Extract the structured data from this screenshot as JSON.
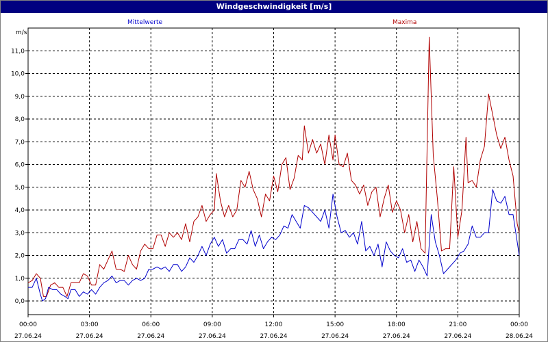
{
  "window": {
    "title": "Windgeschwindigkeit [m/s]"
  },
  "chart_data": {
    "type": "line",
    "title": "Windgeschwindigkeit [m/s]",
    "ylabel": "m/s",
    "ylim": [
      -0.6,
      12.0
    ],
    "xlim": [
      0,
      24
    ],
    "grid": true,
    "y_ticks": [
      "0,0",
      "1,0",
      "2,0",
      "3,0",
      "4,0",
      "5,0",
      "6,0",
      "7,0",
      "8,0",
      "9,0",
      "10,0",
      "11,0"
    ],
    "x_ticks": [
      {
        "time": "00:00",
        "date": "27.06.24"
      },
      {
        "time": "03:00",
        "date": "27.06.24"
      },
      {
        "time": "06:00",
        "date": "27.06.24"
      },
      {
        "time": "09:00",
        "date": "27.06.24"
      },
      {
        "time": "12:00",
        "date": "27.06.24"
      },
      {
        "time": "15:00",
        "date": "27.06.24"
      },
      {
        "time": "18:00",
        "date": "27.06.24"
      },
      {
        "time": "21:00",
        "date": "27.06.24"
      },
      {
        "time": "00:00",
        "date": "28.06.24"
      }
    ],
    "series": [
      {
        "name": "Mittelwerte",
        "color": "#0000cc",
        "points": [
          [
            0.0,
            0.6
          ],
          [
            0.2,
            0.6
          ],
          [
            0.4,
            1.0
          ],
          [
            0.6,
            0.3
          ],
          [
            0.7,
            0.0
          ],
          [
            0.85,
            0.1
          ],
          [
            1.0,
            0.6
          ],
          [
            1.2,
            0.5
          ],
          [
            1.4,
            0.5
          ],
          [
            1.6,
            0.3
          ],
          [
            1.8,
            0.2
          ],
          [
            1.95,
            0.1
          ],
          [
            2.1,
            0.5
          ],
          [
            2.3,
            0.5
          ],
          [
            2.5,
            0.2
          ],
          [
            2.7,
            0.4
          ],
          [
            2.9,
            0.3
          ],
          [
            3.1,
            0.5
          ],
          [
            3.3,
            0.3
          ],
          [
            3.5,
            0.6
          ],
          [
            3.7,
            0.8
          ],
          [
            3.9,
            0.9
          ],
          [
            4.1,
            1.1
          ],
          [
            4.3,
            0.8
          ],
          [
            4.5,
            0.9
          ],
          [
            4.7,
            0.9
          ],
          [
            4.9,
            0.7
          ],
          [
            5.1,
            0.9
          ],
          [
            5.3,
            1.0
          ],
          [
            5.5,
            0.9
          ],
          [
            5.7,
            1.0
          ],
          [
            5.9,
            1.4
          ],
          [
            6.1,
            1.4
          ],
          [
            6.3,
            1.5
          ],
          [
            6.5,
            1.4
          ],
          [
            6.7,
            1.5
          ],
          [
            6.9,
            1.3
          ],
          [
            7.1,
            1.6
          ],
          [
            7.3,
            1.6
          ],
          [
            7.5,
            1.3
          ],
          [
            7.7,
            1.5
          ],
          [
            7.9,
            1.9
          ],
          [
            8.1,
            1.7
          ],
          [
            8.3,
            2.0
          ],
          [
            8.5,
            2.4
          ],
          [
            8.7,
            2.0
          ],
          [
            8.9,
            2.5
          ],
          [
            9.1,
            2.8
          ],
          [
            9.3,
            2.4
          ],
          [
            9.5,
            2.7
          ],
          [
            9.7,
            2.1
          ],
          [
            9.9,
            2.3
          ],
          [
            10.1,
            2.3
          ],
          [
            10.3,
            2.7
          ],
          [
            10.5,
            2.7
          ],
          [
            10.7,
            2.5
          ],
          [
            10.9,
            3.1
          ],
          [
            11.1,
            2.4
          ],
          [
            11.3,
            2.9
          ],
          [
            11.5,
            2.3
          ],
          [
            11.7,
            2.6
          ],
          [
            11.9,
            2.8
          ],
          [
            12.1,
            2.7
          ],
          [
            12.3,
            2.9
          ],
          [
            12.5,
            3.3
          ],
          [
            12.7,
            3.2
          ],
          [
            12.9,
            3.8
          ],
          [
            13.1,
            3.5
          ],
          [
            13.3,
            3.2
          ],
          [
            13.5,
            4.2
          ],
          [
            13.7,
            4.1
          ],
          [
            13.9,
            3.9
          ],
          [
            14.1,
            3.7
          ],
          [
            14.3,
            3.5
          ],
          [
            14.5,
            4.0
          ],
          [
            14.7,
            3.2
          ],
          [
            14.9,
            4.7
          ],
          [
            15.1,
            3.7
          ],
          [
            15.3,
            3.0
          ],
          [
            15.5,
            3.1
          ],
          [
            15.7,
            2.8
          ],
          [
            15.9,
            3.0
          ],
          [
            16.1,
            2.5
          ],
          [
            16.3,
            3.5
          ],
          [
            16.5,
            2.2
          ],
          [
            16.7,
            2.4
          ],
          [
            16.9,
            2.0
          ],
          [
            17.1,
            2.5
          ],
          [
            17.3,
            1.5
          ],
          [
            17.5,
            2.6
          ],
          [
            17.7,
            2.2
          ],
          [
            17.9,
            2.0
          ],
          [
            18.1,
            1.9
          ],
          [
            18.3,
            2.3
          ],
          [
            18.5,
            1.7
          ],
          [
            18.7,
            1.8
          ],
          [
            18.9,
            1.3
          ],
          [
            19.1,
            1.8
          ],
          [
            19.3,
            1.5
          ],
          [
            19.5,
            1.1
          ],
          [
            19.7,
            3.8
          ],
          [
            19.9,
            2.6
          ],
          [
            20.1,
            2.0
          ],
          [
            20.3,
            1.2
          ],
          [
            20.5,
            1.4
          ],
          [
            20.7,
            1.6
          ],
          [
            20.9,
            1.8
          ],
          [
            21.1,
            2.1
          ],
          [
            21.3,
            2.2
          ],
          [
            21.5,
            2.5
          ],
          [
            21.7,
            3.3
          ],
          [
            21.9,
            2.8
          ],
          [
            22.1,
            2.8
          ],
          [
            22.3,
            3.0
          ],
          [
            22.5,
            3.0
          ],
          [
            22.7,
            4.9
          ],
          [
            22.9,
            4.4
          ],
          [
            23.1,
            4.3
          ],
          [
            23.3,
            4.6
          ],
          [
            23.5,
            3.8
          ],
          [
            23.7,
            3.8
          ],
          [
            23.9,
            2.6
          ],
          [
            24.0,
            2.0
          ]
        ]
      },
      {
        "name": "Maxima",
        "color": "#b00000",
        "points": [
          [
            0.0,
            0.8
          ],
          [
            0.2,
            0.9
          ],
          [
            0.4,
            1.2
          ],
          [
            0.6,
            1.0
          ],
          [
            0.75,
            0.2
          ],
          [
            0.9,
            0.2
          ],
          [
            1.1,
            0.7
          ],
          [
            1.3,
            0.8
          ],
          [
            1.5,
            0.6
          ],
          [
            1.7,
            0.6
          ],
          [
            1.9,
            0.2
          ],
          [
            2.1,
            0.8
          ],
          [
            2.3,
            0.8
          ],
          [
            2.5,
            0.8
          ],
          [
            2.7,
            1.2
          ],
          [
            2.9,
            1.1
          ],
          [
            3.1,
            0.7
          ],
          [
            3.3,
            0.7
          ],
          [
            3.5,
            1.6
          ],
          [
            3.7,
            1.4
          ],
          [
            3.9,
            1.8
          ],
          [
            4.1,
            2.2
          ],
          [
            4.3,
            1.4
          ],
          [
            4.5,
            1.4
          ],
          [
            4.7,
            1.3
          ],
          [
            4.9,
            2.0
          ],
          [
            5.1,
            1.6
          ],
          [
            5.3,
            1.4
          ],
          [
            5.5,
            2.2
          ],
          [
            5.7,
            2.5
          ],
          [
            5.9,
            2.3
          ],
          [
            6.1,
            2.3
          ],
          [
            6.3,
            2.9
          ],
          [
            6.5,
            2.9
          ],
          [
            6.7,
            2.4
          ],
          [
            6.9,
            3.0
          ],
          [
            7.1,
            2.8
          ],
          [
            7.3,
            3.0
          ],
          [
            7.5,
            2.7
          ],
          [
            7.7,
            3.4
          ],
          [
            7.9,
            2.6
          ],
          [
            8.1,
            3.5
          ],
          [
            8.3,
            3.7
          ],
          [
            8.5,
            4.2
          ],
          [
            8.7,
            3.5
          ],
          [
            8.9,
            3.8
          ],
          [
            9.1,
            4.0
          ],
          [
            9.2,
            5.6
          ],
          [
            9.4,
            4.4
          ],
          [
            9.6,
            3.7
          ],
          [
            9.8,
            4.2
          ],
          [
            10.0,
            3.7
          ],
          [
            10.2,
            4.0
          ],
          [
            10.4,
            5.3
          ],
          [
            10.6,
            5.0
          ],
          [
            10.8,
            5.7
          ],
          [
            11.0,
            4.9
          ],
          [
            11.2,
            4.5
          ],
          [
            11.4,
            3.7
          ],
          [
            11.6,
            4.7
          ],
          [
            11.8,
            4.4
          ],
          [
            12.0,
            5.5
          ],
          [
            12.2,
            4.8
          ],
          [
            12.4,
            6.0
          ],
          [
            12.6,
            6.3
          ],
          [
            12.8,
            4.9
          ],
          [
            13.0,
            5.4
          ],
          [
            13.2,
            6.4
          ],
          [
            13.4,
            6.2
          ],
          [
            13.5,
            7.7
          ],
          [
            13.7,
            6.5
          ],
          [
            13.9,
            7.1
          ],
          [
            14.1,
            6.5
          ],
          [
            14.3,
            6.9
          ],
          [
            14.5,
            6.0
          ],
          [
            14.7,
            7.3
          ],
          [
            14.9,
            6.2
          ],
          [
            15.0,
            7.3
          ],
          [
            15.2,
            6.0
          ],
          [
            15.4,
            5.9
          ],
          [
            15.6,
            6.5
          ],
          [
            15.8,
            5.3
          ],
          [
            16.0,
            5.1
          ],
          [
            16.2,
            4.7
          ],
          [
            16.4,
            5.1
          ],
          [
            16.6,
            4.2
          ],
          [
            16.8,
            4.8
          ],
          [
            17.0,
            5.0
          ],
          [
            17.2,
            3.7
          ],
          [
            17.4,
            4.5
          ],
          [
            17.6,
            5.1
          ],
          [
            17.8,
            3.9
          ],
          [
            18.0,
            4.4
          ],
          [
            18.2,
            4.0
          ],
          [
            18.4,
            3.0
          ],
          [
            18.6,
            3.8
          ],
          [
            18.8,
            2.6
          ],
          [
            19.0,
            3.5
          ],
          [
            19.2,
            2.3
          ],
          [
            19.4,
            2.1
          ],
          [
            19.6,
            11.6
          ],
          [
            19.8,
            6.4
          ],
          [
            20.0,
            4.5
          ],
          [
            20.2,
            2.2
          ],
          [
            20.4,
            2.3
          ],
          [
            20.6,
            2.3
          ],
          [
            20.8,
            5.9
          ],
          [
            21.0,
            2.8
          ],
          [
            21.2,
            4.0
          ],
          [
            21.4,
            7.2
          ],
          [
            21.5,
            5.2
          ],
          [
            21.7,
            5.3
          ],
          [
            21.9,
            5.0
          ],
          [
            22.1,
            6.2
          ],
          [
            22.3,
            6.8
          ],
          [
            22.5,
            9.1
          ],
          [
            22.7,
            8.2
          ],
          [
            22.9,
            7.3
          ],
          [
            23.1,
            6.7
          ],
          [
            23.3,
            7.2
          ],
          [
            23.5,
            6.2
          ],
          [
            23.7,
            5.5
          ],
          [
            23.9,
            3.4
          ],
          [
            24.0,
            3.0
          ]
        ]
      }
    ]
  }
}
